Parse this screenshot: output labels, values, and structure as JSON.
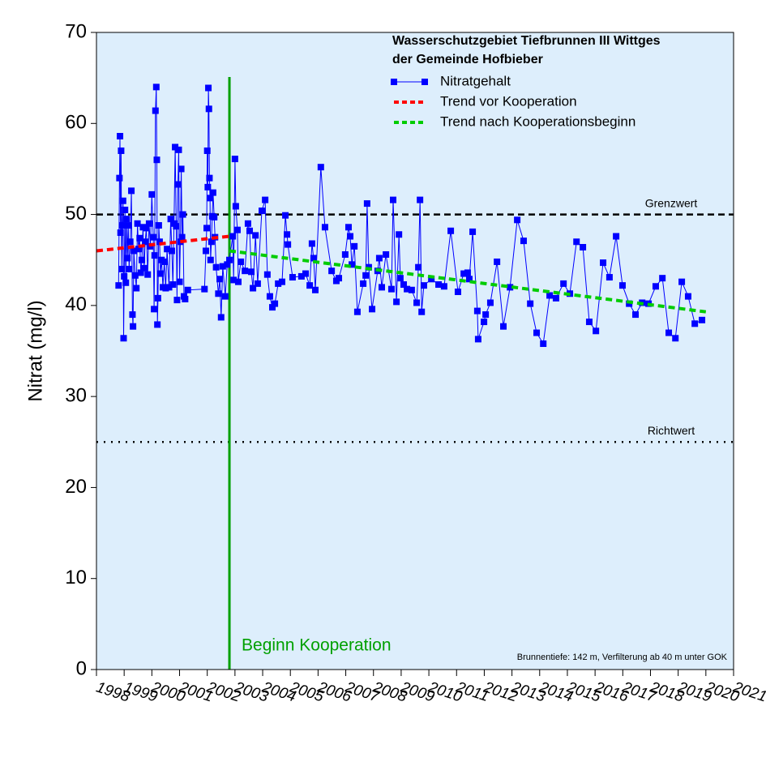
{
  "chart_data": {
    "type": "line",
    "title": [
      "Wasserschutzgebiet Tiefbrunnen III Wittges",
      "der Gemeinde Hofbieber"
    ],
    "y_label": "Nitrat (mg/l)",
    "note": "Brunnentiefe: 142 m, Verfilterung ab 40 m unter GOK",
    "xlim": [
      1998,
      2021
    ],
    "xticks": [
      1998,
      1999,
      2000,
      2001,
      2002,
      2003,
      2004,
      2005,
      2006,
      2007,
      2008,
      2009,
      2010,
      2011,
      2012,
      2013,
      2014,
      2015,
      2016,
      2017,
      2018,
      2019,
      2020,
      2021
    ],
    "ylim": [
      0,
      70
    ],
    "yticks": [
      0,
      10,
      20,
      30,
      40,
      50,
      60,
      70
    ],
    "reference_lines": [
      {
        "name": "Grenzwert",
        "value": 50,
        "style": "dashed",
        "color": "#000000"
      },
      {
        "name": "Richtwert",
        "value": 25,
        "style": "dotted",
        "color": "#000000"
      }
    ],
    "vline": {
      "label": "Beginn Kooperation",
      "x": 2002.8,
      "color": "#00a000"
    },
    "series": [
      {
        "name": "Nitratgehalt",
        "color": "#0000ff",
        "marker": "square",
        "style": "solid",
        "x": [
          1998.8,
          1998.83,
          1998.85,
          1998.87,
          1998.89,
          1998.91,
          1998.93,
          1998.96,
          1998.98,
          1999.0,
          1999.03,
          1999.06,
          1999.09,
          1999.12,
          1999.15,
          1999.18,
          1999.22,
          1999.26,
          1999.3,
          1999.32,
          1999.35,
          1999.4,
          1999.44,
          1999.48,
          1999.52,
          1999.56,
          1999.6,
          1999.64,
          1999.68,
          1999.72,
          1999.76,
          1999.8,
          1999.85,
          1999.9,
          1999.95,
          2000.0,
          2000.05,
          2000.08,
          2000.1,
          2000.13,
          2000.16,
          2000.18,
          2000.2,
          2000.22,
          2000.25,
          2000.28,
          2000.31,
          2000.35,
          2000.4,
          2000.45,
          2000.5,
          2000.55,
          2000.62,
          2000.68,
          2000.72,
          2000.76,
          2000.8,
          2000.84,
          2000.88,
          2000.91,
          2000.94,
          2000.97,
          2001.0,
          2001.03,
          2001.06,
          2001.09,
          2001.12,
          2001.16,
          2001.2,
          2001.3,
          2001.9,
          2001.95,
          2001.98,
          2002.0,
          2002.02,
          2002.04,
          2002.06,
          2002.08,
          2002.1,
          2002.12,
          2002.15,
          2002.18,
          2002.21,
          2002.25,
          2002.28,
          2002.32,
          2002.4,
          2002.45,
          2002.5,
          2002.56,
          2002.65,
          2002.72,
          2002.8,
          2002.92,
          2002.95,
          2003.0,
          2003.03,
          2003.09,
          2003.12,
          2003.21,
          2003.36,
          2003.47,
          2003.53,
          2003.59,
          2003.65,
          2003.74,
          2003.82,
          2003.97,
          2004.09,
          2004.17,
          2004.26,
          2004.35,
          2004.44,
          2004.56,
          2004.7,
          2004.82,
          2004.88,
          2004.91,
          2005.08,
          2005.4,
          2005.55,
          2005.7,
          2005.78,
          2005.84,
          2005.9,
          2006.1,
          2006.25,
          2006.49,
          2006.66,
          2006.75,
          2006.98,
          2007.1,
          2007.16,
          2007.22,
          2007.31,
          2007.42,
          2007.63,
          2007.72,
          2007.77,
          2007.83,
          2007.95,
          2008.15,
          2008.21,
          2008.3,
          2008.45,
          2008.65,
          2008.71,
          2008.83,
          2008.92,
          2008.97,
          2009.09,
          2009.21,
          2009.38,
          2009.56,
          2009.62,
          2009.68,
          2009.74,
          2009.82,
          2010.09,
          2010.35,
          2010.55,
          2010.79,
          2011.05,
          2011.26,
          2011.4,
          2011.46,
          2011.58,
          2011.75,
          2011.78,
          2011.99,
          2012.05,
          2012.22,
          2012.46,
          2012.69,
          2012.93,
          2013.19,
          2013.42,
          2013.66,
          2013.89,
          2014.13,
          2014.36,
          2014.59,
          2014.86,
          2015.09,
          2015.33,
          2015.56,
          2015.79,
          2016.03,
          2016.29,
          2016.52,
          2016.76,
          2016.99,
          2017.23,
          2017.46,
          2017.7,
          2017.93,
          2018.19,
          2018.43,
          2018.66,
          2018.9,
          2019.13,
          2019.36,
          2019.6,
          2019.86
        ],
        "values": [
          42.2,
          54,
          58.6,
          48,
          57,
          44,
          48.8,
          51.5,
          36.4,
          43.2,
          50.5,
          42.5,
          49.5,
          45.2,
          48.8,
          44,
          47,
          52.6,
          39,
          37.7,
          46,
          43.3,
          41.9,
          49,
          46.2,
          47.4,
          43.6,
          45,
          48.6,
          44.1,
          47,
          48.5,
          43.4,
          49,
          46.5,
          52.2,
          47.5,
          39.6,
          45.5,
          61.4,
          64,
          56,
          37.9,
          40.8,
          48.8,
          47,
          43.5,
          45,
          42,
          44.8,
          41.9,
          46.2,
          42,
          49.5,
          46,
          42.3,
          49,
          57.4,
          48.7,
          40.6,
          53.3,
          57.1,
          42.6,
          47,
          55,
          47.5,
          50,
          41,
          40.7,
          41.7,
          41.8,
          46,
          48.5,
          57,
          53,
          63.9,
          61.6,
          54,
          51.8,
          45,
          47,
          49.8,
          52.4,
          49.7,
          47.5,
          44.2,
          41.3,
          42.9,
          38.7,
          44.3,
          41,
          44.5,
          45,
          47.6,
          42.8,
          56.1,
          50.9,
          48.3,
          42.6,
          44.8,
          43.8,
          49,
          48.2,
          43.7,
          41.9,
          47.7,
          42.4,
          50.4,
          51.6,
          43.4,
          41,
          39.8,
          40.2,
          42.4,
          42.6,
          49.9,
          47.8,
          46.7,
          43.1,
          43.2,
          43.5,
          42.2,
          46.8,
          45.2,
          41.7,
          55.2,
          48.6,
          43.8,
          42.7,
          43,
          45.6,
          48.6,
          47.6,
          44.5,
          46.5,
          39.3,
          42.4,
          43.3,
          51.2,
          44.2,
          39.6,
          43.8,
          45.2,
          42,
          45.6,
          41.8,
          51.6,
          40.4,
          47.8,
          43,
          42.3,
          41.8,
          41.7,
          40.3,
          44.2,
          51.6,
          39.3,
          42.2,
          42.9,
          42.3,
          42.1,
          48.2,
          41.5,
          43.5,
          43.6,
          42.9,
          48.1,
          39.4,
          36.3,
          38.2,
          39,
          40.3,
          44.8,
          37.7,
          42,
          49.4,
          47.1,
          40.2,
          37,
          35.8,
          41.1,
          40.8,
          42.4,
          41.3,
          47,
          46.4,
          38.2,
          37.2,
          44.7,
          43.1,
          47.6,
          42.2,
          40.2,
          39,
          40.3,
          40.2,
          42.1,
          43,
          37,
          36.4,
          42.6,
          41,
          38,
          38.4
        ]
      },
      {
        "name": "Trend vor Kooperation",
        "color": "#ff0000",
        "style": "dashed",
        "x": [
          1998,
          2002.8
        ],
        "values": [
          46,
          47.6
        ]
      },
      {
        "name": "Trend nach Kooperationsbeginn",
        "color": "#00cc00",
        "style": "dashed",
        "x": [
          2002.8,
          2020
        ],
        "values": [
          46,
          39.3
        ]
      }
    ]
  }
}
